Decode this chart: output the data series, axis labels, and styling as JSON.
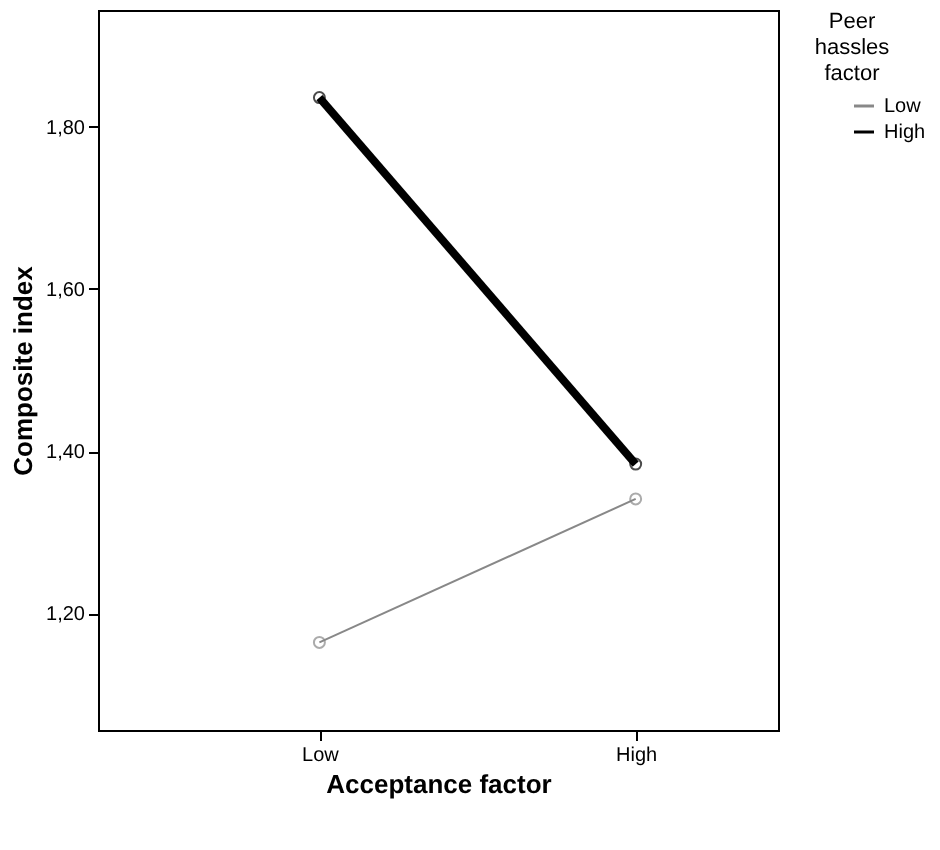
{
  "chart_data": {
    "type": "line",
    "xlabel": "Acceptance factor",
    "ylabel": "Composite index",
    "legend_title": "Peer hassles factor",
    "categories": [
      "Low",
      "High"
    ],
    "series": [
      {
        "name": "Low",
        "color": "#888888",
        "values": [
          1.164,
          1.341
        ]
      },
      {
        "name": "High",
        "color": "#000000",
        "values": [
          1.836,
          1.384
        ]
      }
    ],
    "ylim": [
      1.056,
      1.944
    ],
    "yticks": [
      {
        "value": 1.2,
        "label": "1,20"
      },
      {
        "value": 1.4,
        "label": "1,40"
      },
      {
        "value": 1.6,
        "label": "1,60"
      },
      {
        "value": 1.8,
        "label": "1,80"
      }
    ],
    "grid": false,
    "legend": "top right",
    "marker": "circle",
    "line_style": "solid"
  }
}
